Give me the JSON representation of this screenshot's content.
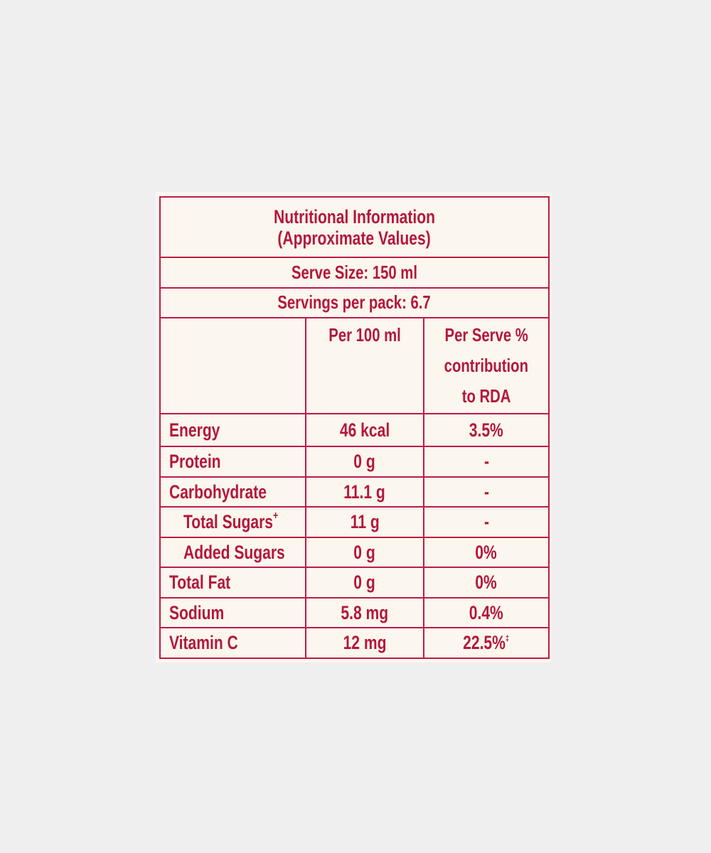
{
  "label": {
    "title_line1": "Nutritional Information",
    "title_line2": "(Approximate Values)",
    "serve_size": "Serve Size: 150 ml",
    "servings_per_pack": "Servings per pack: 6.7",
    "headers": {
      "nutrient": "",
      "per_100ml": "Per 100 ml",
      "per_serve_line1": "Per Serve %",
      "per_serve_line2": "contribution",
      "per_serve_line3": "to RDA"
    },
    "rows": [
      {
        "name": "Energy",
        "per_100ml": "46 kcal",
        "rda": "3.5%",
        "rda_mark": ""
      },
      {
        "name": "Protein",
        "per_100ml": "0 g",
        "rda": "-",
        "rda_mark": ""
      },
      {
        "name": "Carbohydrate",
        "per_100ml": "11.1 g",
        "rda": "-",
        "rda_mark": ""
      },
      {
        "name": "Total Sugars",
        "name_mark": "+",
        "per_100ml": "11 g",
        "rda": "-",
        "rda_mark": ""
      },
      {
        "name": "Added Sugars",
        "per_100ml": "0 g",
        "rda": "0%",
        "rda_mark": ""
      },
      {
        "name": "Total Fat",
        "per_100ml": "0 g",
        "rda": "0%",
        "rda_mark": ""
      },
      {
        "name": "Sodium",
        "per_100ml": "5.8 mg",
        "rda": "0.4%",
        "rda_mark": ""
      },
      {
        "name": "Vitamin C",
        "per_100ml": "12 mg",
        "rda": "22.5%",
        "rda_mark": "‡"
      }
    ]
  },
  "colors": {
    "ink": "#b3173c",
    "rule": "#bc1c45",
    "card": "#fbf6ee",
    "background": "#efefef"
  }
}
